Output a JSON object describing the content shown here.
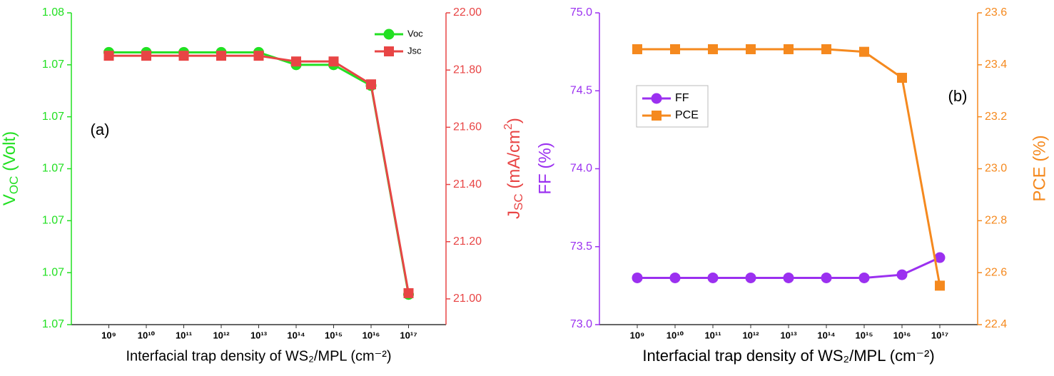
{
  "chart_data": [
    {
      "type": "line",
      "annotation": "(a)",
      "categories": [
        "10⁹",
        "10¹⁰",
        "10¹¹",
        "10¹²",
        "10¹³",
        "10¹⁴",
        "10¹⁵",
        "10¹⁶",
        "10¹⁷"
      ],
      "x_label": "Interfacial trap density of WS₂/MPL (cm⁻²)",
      "y_label": [
        "V",
        "OC",
        " (Volt)"
      ],
      "y2_label": [
        "J",
        "SC",
        " (mA/cm",
        "2",
        ")"
      ],
      "ylim": [
        1.072,
        1.075
      ],
      "yticks": [
        {
          "value": 1.072,
          "label": "1.07"
        },
        {
          "value": 1.0725,
          "label": "1.07"
        },
        {
          "value": 1.073,
          "label": "1.07"
        },
        {
          "value": 1.0735,
          "label": "1.07"
        },
        {
          "value": 1.074,
          "label": "1.07"
        },
        {
          "value": 1.0745,
          "label": "1.07"
        },
        {
          "value": 1.075,
          "label": "1.08"
        }
      ],
      "y2lim": [
        20.91,
        22.0
      ],
      "y2ticks": [
        {
          "value": 21.0,
          "label": "21.00"
        },
        {
          "value": 21.2,
          "label": "21.20"
        },
        {
          "value": 21.4,
          "label": "21.40"
        },
        {
          "value": 21.6,
          "label": "21.60"
        },
        {
          "value": 21.8,
          "label": "21.80"
        },
        {
          "value": 22.0,
          "label": "22.00"
        }
      ],
      "legend": "upper right",
      "series": [
        {
          "name": "Voc",
          "color": "#22e022",
          "marker": "circle",
          "values": [
            1.07462,
            1.07462,
            1.07462,
            1.07462,
            1.07462,
            1.0745,
            1.0745,
            1.0743,
            1.07229
          ]
        },
        {
          "name": "Jsc",
          "color": "#e84545",
          "marker": "square",
          "axis": "y2",
          "values": [
            21.85,
            21.85,
            21.85,
            21.85,
            21.85,
            21.83,
            21.83,
            21.75,
            21.02
          ]
        }
      ]
    },
    {
      "type": "line",
      "annotation": "(b)",
      "categories": [
        "10⁹",
        "10¹⁰",
        "10¹¹",
        "10¹²",
        "10¹³",
        "10¹⁴",
        "10¹⁵",
        "10¹⁶",
        "10¹⁷"
      ],
      "x_label": "Interfacial trap density of WS₂/MPL (cm⁻²)",
      "y_label": [
        "FF (%)"
      ],
      "y2_label": [
        "PCE (%)"
      ],
      "ylim": [
        73.0,
        75.0
      ],
      "yticks": [
        {
          "value": 73.0,
          "label": "73.0"
        },
        73.5,
        {
          "value": 74.0,
          "label": "74.0"
        },
        74.5,
        {
          "value": 75.0,
          "label": "75.0"
        }
      ],
      "y2lim": [
        22.4,
        23.6
      ],
      "y2ticks": [
        22.4,
        22.6,
        22.8,
        {
          "value": 23.0,
          "label": "23.0"
        },
        23.2,
        23.4,
        23.6
      ],
      "legend": "upper left",
      "series": [
        {
          "name": "FF",
          "color": "#9b30f0",
          "marker": "circle",
          "values": [
            73.3,
            73.3,
            73.3,
            73.3,
            73.3,
            73.3,
            73.3,
            73.32,
            73.43
          ]
        },
        {
          "name": "PCE",
          "color": "#f5891e",
          "marker": "square",
          "axis": "y2",
          "values": [
            23.46,
            23.46,
            23.46,
            23.46,
            23.46,
            23.46,
            23.45,
            23.35,
            22.55
          ]
        }
      ]
    }
  ]
}
